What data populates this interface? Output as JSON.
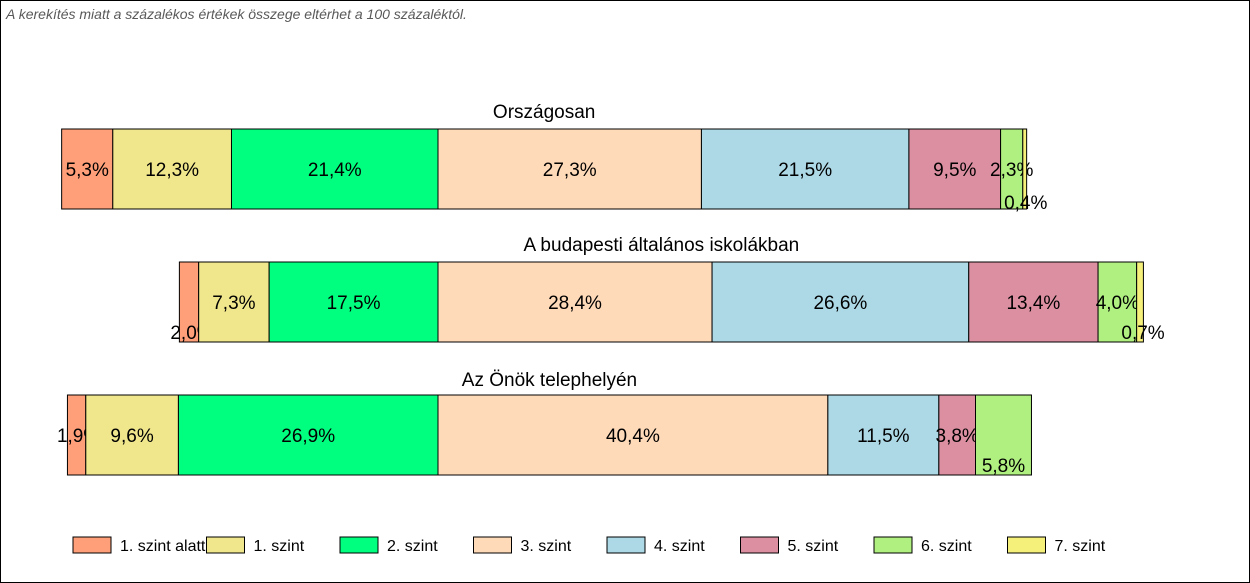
{
  "note": "A kerekítés miatt a  százalékos értékek összege eltérhet a 100 százaléktól.",
  "chart_data": {
    "type": "bar",
    "orientation": "horizontal",
    "stacked": true,
    "legend_position": "bottom",
    "grid": false,
    "series": [
      {
        "name": "1. szint alatti",
        "color": "#FF9F79"
      },
      {
        "name": "1. szint",
        "color": "#F0E68C"
      },
      {
        "name": "2. szint",
        "color": "#00FF7F"
      },
      {
        "name": "3. szint",
        "color": "#FFDAB9"
      },
      {
        "name": "4. szint",
        "color": "#ADD8E6"
      },
      {
        "name": "5. szint",
        "color": "#DB8FA0"
      },
      {
        "name": "6. szint",
        "color": "#B0F080"
      },
      {
        "name": "7. szint",
        "color": "#F5F07A"
      }
    ],
    "groups": [
      {
        "title": "Országosan",
        "values": [
          5.3,
          12.3,
          21.4,
          27.3,
          21.5,
          9.5,
          2.3,
          0.4
        ],
        "labels": [
          "5,3%",
          "12,3%",
          "21,4%",
          "27,3%",
          "21,5%",
          "9,5%",
          "2,3%",
          "0,4%"
        ]
      },
      {
        "title": "A budapesti általános iskolákban",
        "values": [
          2.0,
          7.3,
          17.5,
          28.4,
          26.6,
          13.4,
          4.0,
          0.7
        ],
        "labels": [
          "2,0%",
          "7,3%",
          "17,5%",
          "28,4%",
          "26,6%",
          "13,4%",
          "4,0%",
          "0,7%"
        ]
      },
      {
        "title": "Az Önök telephelyén",
        "values": [
          1.9,
          9.6,
          26.9,
          40.4,
          11.5,
          3.8,
          5.8
        ],
        "labels": [
          "1,9%",
          "9,6%",
          "26,9%",
          "40,4%",
          "11,5%",
          "3,8%",
          "5,8%"
        ]
      }
    ]
  }
}
